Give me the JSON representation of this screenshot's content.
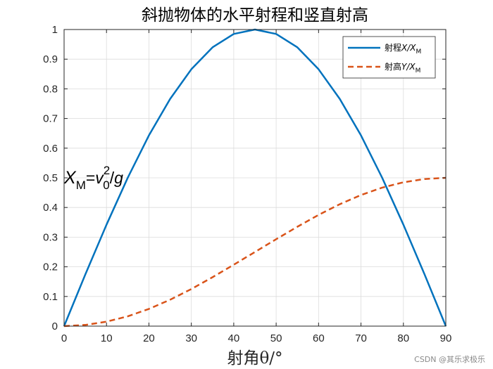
{
  "chart_data": {
    "type": "line",
    "title": "斜抛物体的水平射程和竖直射高",
    "xlabel": "射角θ/°",
    "ylabel": "",
    "xlim": [
      0,
      90
    ],
    "ylim": [
      0,
      1
    ],
    "x_ticks": [
      0,
      10,
      20,
      30,
      40,
      50,
      60,
      70,
      80,
      90
    ],
    "y_ticks": [
      0,
      0.1,
      0.2,
      0.3,
      0.4,
      0.5,
      0.6,
      0.7,
      0.8,
      0.9,
      1
    ],
    "grid": true,
    "legend_position": "top-right",
    "x": [
      0,
      5,
      10,
      15,
      20,
      25,
      30,
      35,
      40,
      45,
      50,
      55,
      60,
      65,
      70,
      75,
      80,
      85,
      90
    ],
    "series": [
      {
        "name": "射程X/X_M",
        "legend_main": "射程",
        "legend_italic": "X/X",
        "legend_sub": "M",
        "color": "#0072BD",
        "style": "solid",
        "values": [
          0,
          0.174,
          0.342,
          0.5,
          0.643,
          0.766,
          0.866,
          0.94,
          0.985,
          1.0,
          0.985,
          0.94,
          0.866,
          0.766,
          0.643,
          0.5,
          0.342,
          0.174,
          0
        ]
      },
      {
        "name": "射高Y/X_M",
        "legend_main": "射高",
        "legend_italic": "Y/X",
        "legend_sub": "M",
        "color": "#D95319",
        "style": "dashed",
        "values": [
          0,
          0.004,
          0.015,
          0.033,
          0.058,
          0.089,
          0.125,
          0.165,
          0.207,
          0.25,
          0.293,
          0.335,
          0.375,
          0.411,
          0.442,
          0.467,
          0.485,
          0.496,
          0.5
        ]
      }
    ],
    "annotation": {
      "text": "X_M=v_0^2/g",
      "x_val": 0,
      "y_val": 0.5
    }
  },
  "watermark": "CSDN @其乐求极乐"
}
